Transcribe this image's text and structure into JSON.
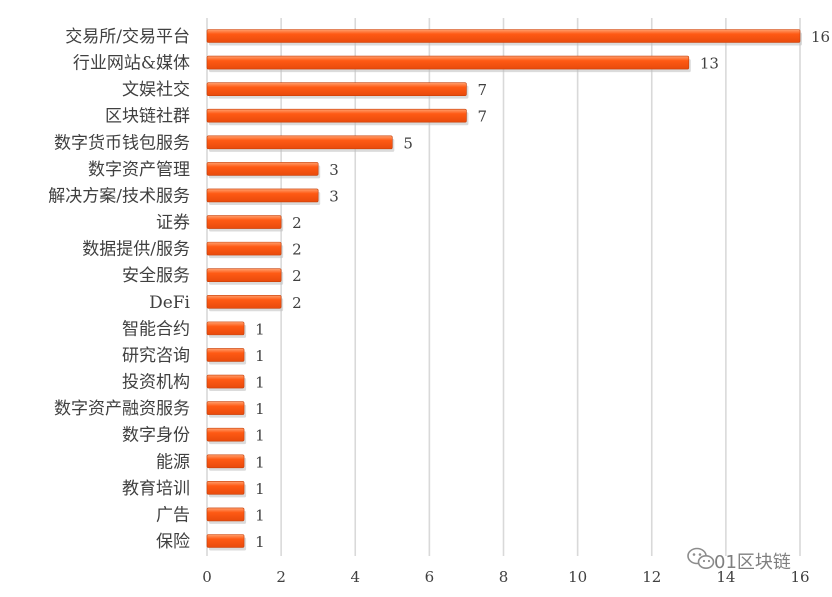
{
  "chart_data": {
    "type": "bar",
    "orientation": "horizontal",
    "categories": [
      "交易所/交易平台",
      "行业网站&媒体",
      "文娱社交",
      "区块链社群",
      "数字货币钱包服务",
      "数字资产管理",
      "解决方案/技术服务",
      "证券",
      "数据提供/服务",
      "安全服务",
      "DeFi",
      "智能合约",
      "研究咨询",
      "投资机构",
      "数字资产融资服务",
      "数字身份",
      "能源",
      "教育培训",
      "广告",
      "保险"
    ],
    "values": [
      16,
      13,
      7,
      7,
      5,
      3,
      3,
      2,
      2,
      2,
      2,
      1,
      1,
      1,
      1,
      1,
      1,
      1,
      1,
      1
    ],
    "xlim": [
      0,
      16
    ],
    "xticks": [
      "0",
      "2",
      "4",
      "6",
      "8",
      "10",
      "12",
      "14",
      "16"
    ],
    "grid": true,
    "bar_color": "#ff5a14",
    "bar_top_color": "#ff9a66",
    "bar_edge_color": "#c8400a",
    "legend": "none"
  },
  "watermark": {
    "text": "01区块链",
    "icon": "wechat-icon"
  }
}
